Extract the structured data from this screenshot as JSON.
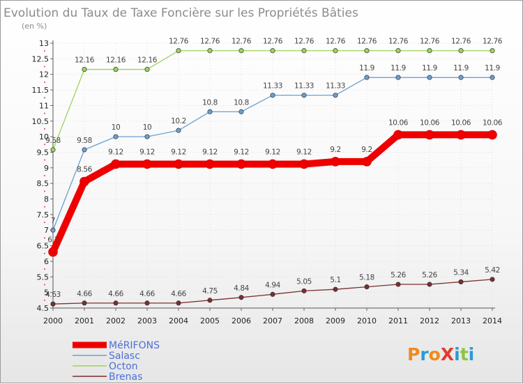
{
  "title": "Evolution du Taux de Taxe Foncière sur les Propriétés Bâties",
  "unit_label": "(en %)",
  "logo": {
    "text": "ProXiti",
    "colors": [
      "#f08a1c",
      "#2a9bd6",
      "#f08a1c",
      "#e23b2e",
      "#2a9bd6",
      "#8cc63f",
      "#2a9bd6"
    ]
  },
  "chart_data": {
    "type": "line",
    "x": [
      2000,
      2001,
      2002,
      2003,
      2004,
      2005,
      2006,
      2007,
      2008,
      2009,
      2010,
      2011,
      2012,
      2013,
      2014
    ],
    "ylim": [
      4.5,
      13
    ],
    "yticks": [
      4.5,
      5,
      5.5,
      6,
      6.5,
      7,
      7.5,
      8,
      8.5,
      9,
      9.5,
      10,
      10.5,
      11,
      11.5,
      12,
      12.5,
      13
    ],
    "grid": true,
    "legend_position": "bottom-left",
    "series": [
      {
        "name": "MéRIFONS",
        "color": "#ee0000",
        "values": [
          6.3,
          8.56,
          9.12,
          9.12,
          9.12,
          9.12,
          9.12,
          9.12,
          9.12,
          9.2,
          9.2,
          10.06,
          10.06,
          10.06,
          10.06
        ],
        "labels": [
          "6.3",
          "8.56",
          "9.12",
          "9.12",
          "9.12",
          "9.12",
          "9.12",
          "9.12",
          "9.12",
          "9.2",
          "9.2",
          "10.06",
          "10.06",
          "10.06",
          "10.06"
        ]
      },
      {
        "name": "Salasc",
        "color": "#6a9fd2",
        "values": [
          7,
          9.58,
          10,
          10,
          10.2,
          10.8,
          10.8,
          11.33,
          11.33,
          11.33,
          11.9,
          11.9,
          11.9,
          11.9,
          11.9
        ],
        "labels": [
          "7",
          "9.58",
          "10",
          "10",
          "10.2",
          "10.8",
          "10.8",
          "11.33",
          "11.33",
          "11.33",
          "11.9",
          "11.9",
          "11.9",
          "11.9",
          "11.9"
        ]
      },
      {
        "name": "Octon",
        "color": "#99d45a",
        "values": [
          9.58,
          12.16,
          12.16,
          12.16,
          12.76,
          12.76,
          12.76,
          12.76,
          12.76,
          12.76,
          12.76,
          12.76,
          12.76,
          12.76,
          12.76
        ],
        "labels": [
          "9.58",
          "12.16",
          "12.16",
          "12.16",
          "12.76",
          "12.76",
          "12.76",
          "12.76",
          "12.76",
          "12.76",
          "12.76",
          "12.76",
          "12.76",
          "12.76",
          "12.76"
        ]
      },
      {
        "name": "Brenas",
        "color": "#7a2f2f",
        "values": [
          4.63,
          4.66,
          4.66,
          4.66,
          4.66,
          4.75,
          4.84,
          4.94,
          5.05,
          5.1,
          5.18,
          5.26,
          5.26,
          5.34,
          5.42
        ],
        "labels": [
          "4.63",
          "4.66",
          "4.66",
          "4.66",
          "4.66",
          "4.75",
          "4.84",
          "4.94",
          "5.05",
          "5.1",
          "5.18",
          "5.26",
          "5.26",
          "5.34",
          "5.42"
        ]
      }
    ]
  }
}
